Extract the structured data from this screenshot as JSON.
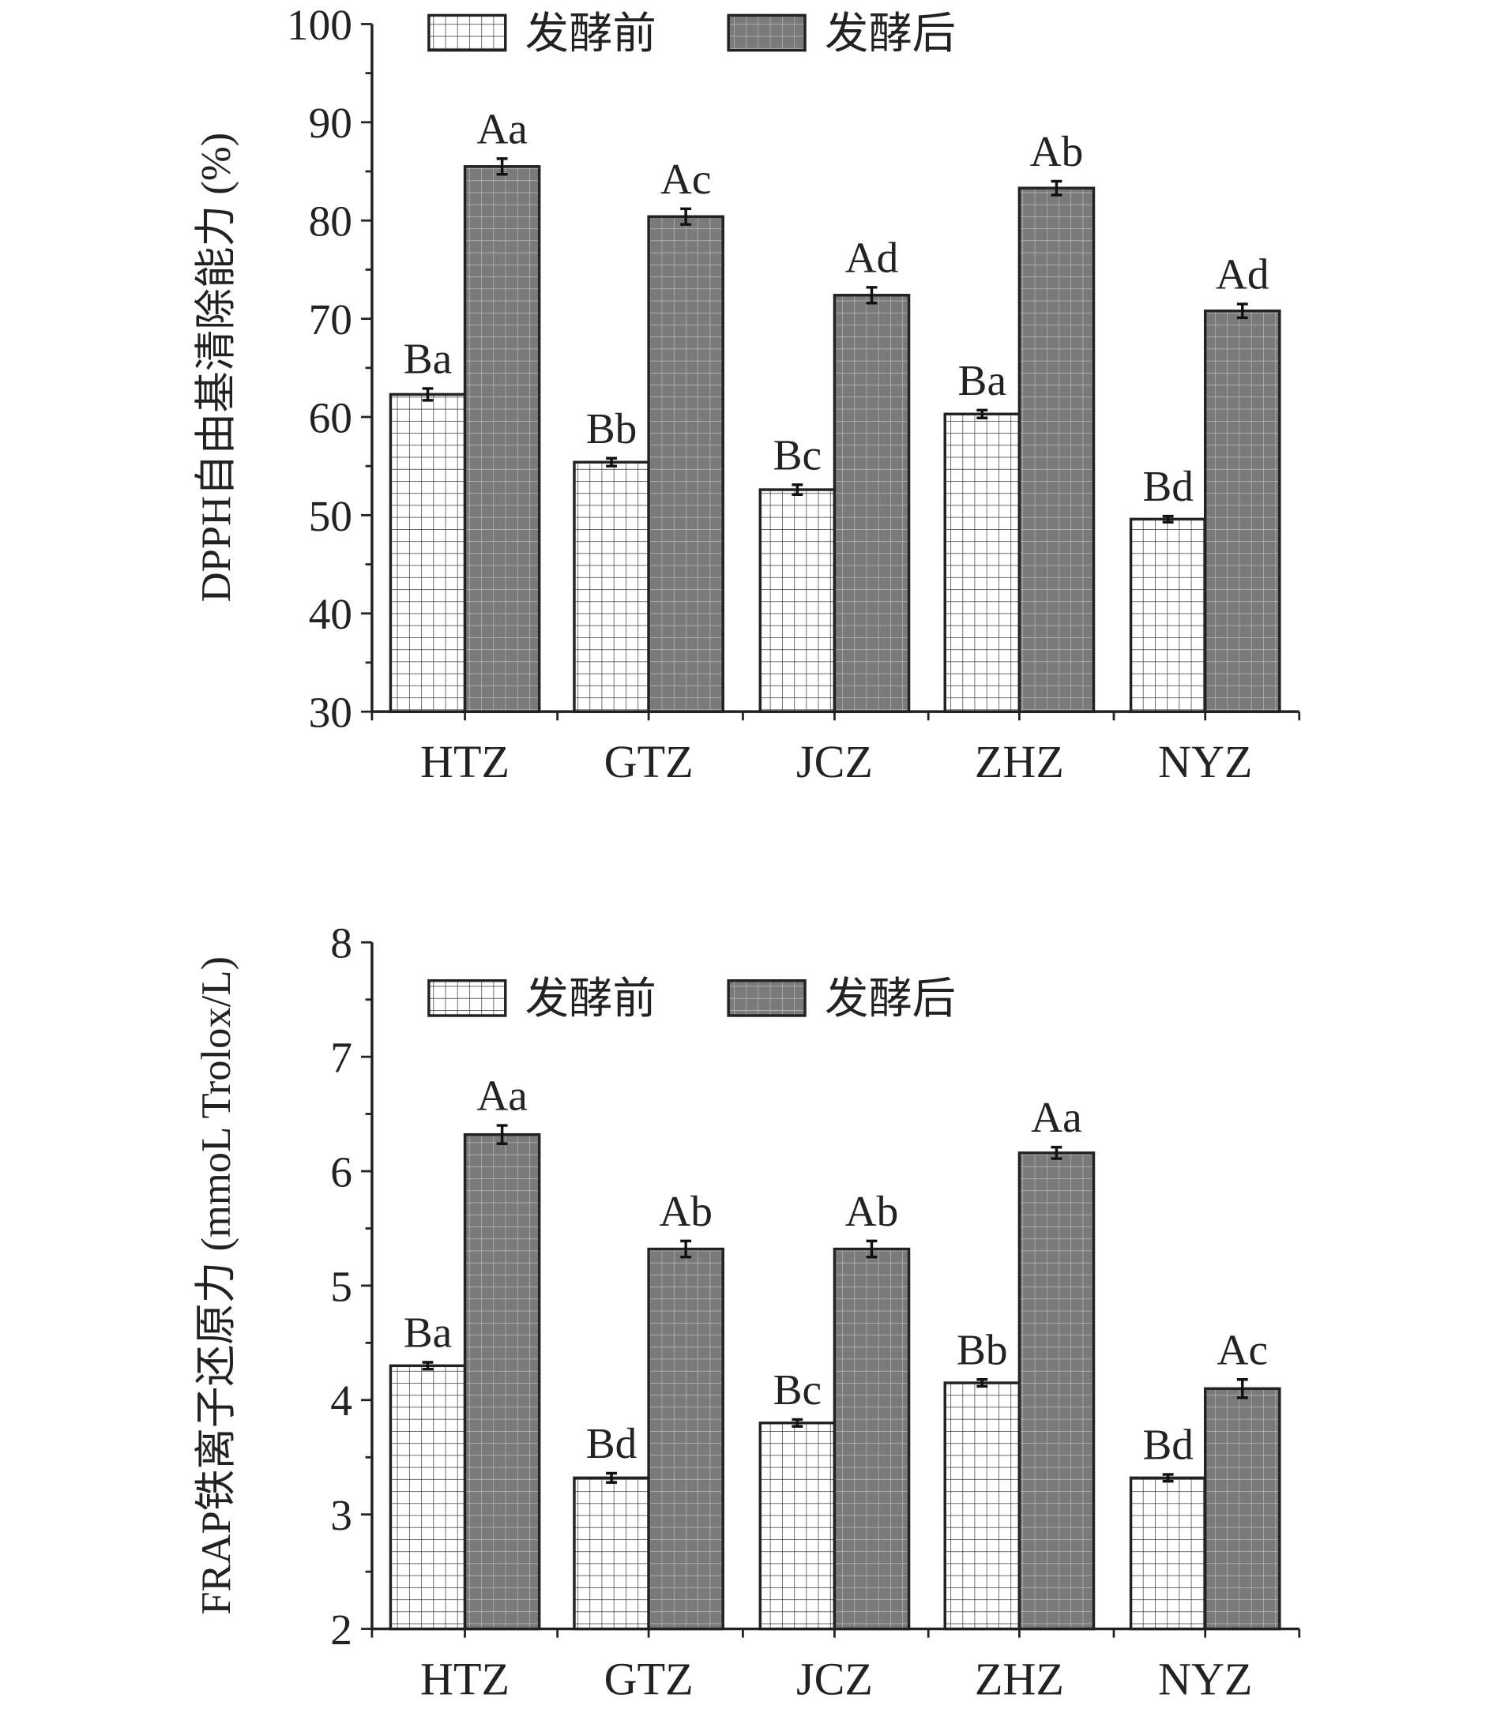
{
  "chart_data": [
    {
      "type": "bar",
      "title": "",
      "xlabel": "",
      "ylabel": "DPPH自由基清除能力 (%)",
      "ylim": [
        30,
        100
      ],
      "yticks": [
        30,
        40,
        50,
        60,
        70,
        80,
        90,
        100
      ],
      "categories": [
        "HTZ",
        "GTZ",
        "JCZ",
        "ZHZ",
        "NYZ"
      ],
      "legend_position": "top",
      "series": [
        {
          "name": "发酵前",
          "values": [
            62.3,
            55.4,
            52.6,
            60.3,
            49.6
          ],
          "errors": [
            0.6,
            0.4,
            0.5,
            0.4,
            0.3
          ],
          "labels": [
            "Ba",
            "Bb",
            "Bc",
            "Ba",
            "Bd"
          ],
          "color": "#ffffff"
        },
        {
          "name": "发酵后",
          "values": [
            85.5,
            80.4,
            72.4,
            83.3,
            70.8
          ],
          "errors": [
            0.8,
            0.8,
            0.8,
            0.7,
            0.7
          ],
          "labels": [
            "Aa",
            "Ac",
            "Ad",
            "Ab",
            "Ad"
          ],
          "color": "#7a7a7a"
        }
      ]
    },
    {
      "type": "bar",
      "title": "",
      "xlabel": "",
      "ylabel": "FRAP铁离子还原力 (mmoL Trolox/L)",
      "ylim": [
        2,
        8
      ],
      "yticks": [
        2,
        3,
        4,
        5,
        6,
        7,
        8
      ],
      "categories": [
        "HTZ",
        "GTZ",
        "JCZ",
        "ZHZ",
        "NYZ"
      ],
      "legend_position": "top",
      "series": [
        {
          "name": "发酵前",
          "values": [
            4.3,
            3.32,
            3.8,
            4.15,
            3.32
          ],
          "errors": [
            0.03,
            0.04,
            0.03,
            0.03,
            0.03
          ],
          "labels": [
            "Ba",
            "Bd",
            "Bc",
            "Bb",
            "Bd"
          ],
          "color": "#ffffff"
        },
        {
          "name": "发酵后",
          "values": [
            6.32,
            5.32,
            5.32,
            6.16,
            4.1
          ],
          "errors": [
            0.08,
            0.07,
            0.07,
            0.05,
            0.08
          ],
          "labels": [
            "Aa",
            "Ab",
            "Ab",
            "Aa",
            "Ac"
          ],
          "color": "#7a7a7a"
        }
      ]
    }
  ]
}
